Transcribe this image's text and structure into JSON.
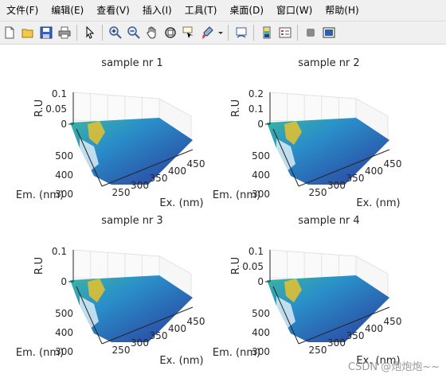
{
  "menu": [
    "文件(F)",
    "编辑(E)",
    "查看(V)",
    "插入(I)",
    "工具(T)",
    "桌面(D)",
    "窗口(W)",
    "帮助(H)"
  ],
  "toolbar_icons": [
    "new-figure-icon",
    "open-icon",
    "save-icon",
    "print-icon",
    "pointer-icon",
    "zoom-in-icon",
    "zoom-out-icon",
    "pan-hand-icon",
    "rotate-3d-icon",
    "data-cursor-icon",
    "brush-icon",
    "brush-dropdown-icon",
    "link-plot-icon",
    "insert-colorbar-icon",
    "insert-legend-icon",
    "hide-plot-tools-icon",
    "show-plot-tools-icon"
  ],
  "plots": [
    {
      "title": "sample nr 1",
      "zlabel": "R.U",
      "xlabel": "Ex. (nm)",
      "ylabel": "Em. (nm)",
      "zticks": [
        "0.1",
        "0.05",
        "0"
      ],
      "yticks": [
        "500",
        "400",
        "300"
      ],
      "xticks": [
        "250",
        "300",
        "350",
        "400",
        "450"
      ]
    },
    {
      "title": "sample nr 2",
      "zlabel": "R.U",
      "xlabel": "Ex. (nm)",
      "ylabel": "Em. (nm)",
      "zticks": [
        "0.2",
        "0.1",
        "0"
      ],
      "yticks": [
        "500",
        "400",
        "300"
      ],
      "xticks": [
        "250",
        "300",
        "350",
        "400",
        "450"
      ]
    },
    {
      "title": "sample nr 3",
      "zlabel": "R.U",
      "xlabel": "Ex. (nm)",
      "ylabel": "Em. (nm)",
      "zticks": [
        "0.1",
        "0"
      ],
      "yticks": [
        "500",
        "400",
        "300"
      ],
      "xticks": [
        "250",
        "300",
        "350",
        "400",
        "450"
      ]
    },
    {
      "title": "sample nr 4",
      "zlabel": "R.U",
      "xlabel": "Ex. (nm)",
      "ylabel": "Em. (nm)",
      "zticks": [
        "0.1",
        "0.05",
        "0"
      ],
      "yticks": [
        "500",
        "400",
        "300"
      ],
      "xticks": [
        "250",
        "300",
        "350",
        "400",
        "450"
      ]
    }
  ],
  "colors": {
    "surface_dark": "#2b3a9c",
    "surface_mid": "#2a8fc9",
    "surface_teal": "#3bb5a0",
    "surface_peak": "#e8c12c",
    "grid": "#e3e3e3",
    "axis": "#262626"
  },
  "watermark": "CSDN @炮炮炮~~"
}
